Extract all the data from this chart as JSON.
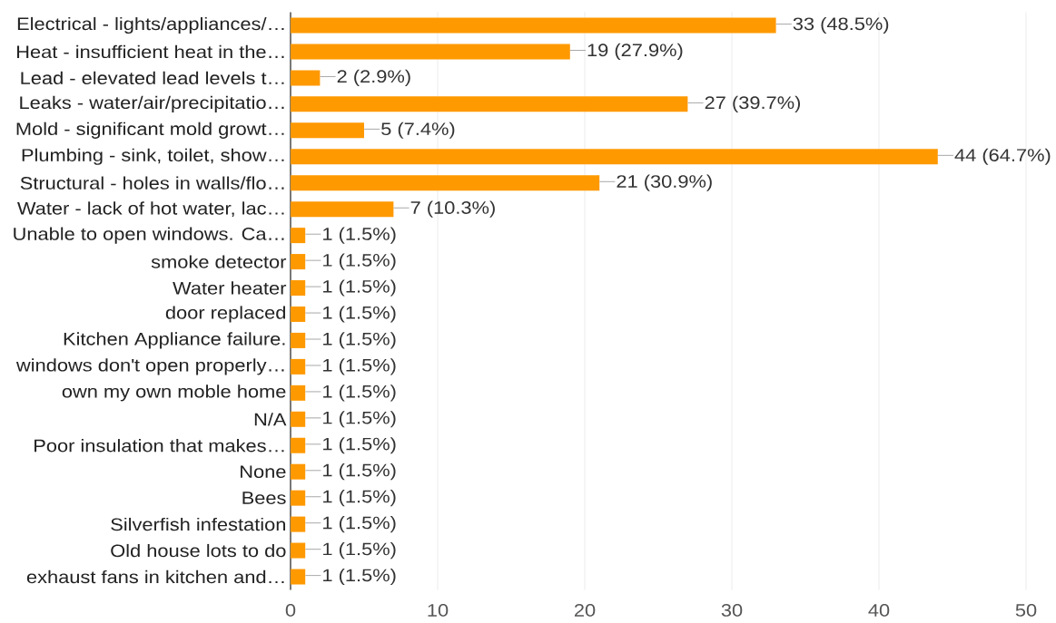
{
  "chart_data": {
    "type": "bar",
    "orientation": "horizontal",
    "categories": [
      "Electrical - lights/appliances/…",
      "Heat - insufficient heat in the…",
      "Lead - elevated lead levels t…",
      "Leaks - water/air/precipitatio…",
      "Mold - significant mold growt…",
      "Plumbing - sink, toilet, show…",
      "Structural - holes in walls/flo…",
      "Water - lack of hot water, lac…",
      "Unable to open windows. Ca…",
      "smoke detector",
      "Water heater",
      "door replaced",
      "Kitchen Appliance failure.",
      "windows don't open properly…",
      "own my own moble home",
      "N/A",
      "Poor insulation that makes…",
      "None",
      "Bees",
      "Silverfish infestation",
      "Old house lots to do",
      "exhaust fans in kitchen and…"
    ],
    "values": [
      33,
      19,
      2,
      27,
      5,
      44,
      21,
      7,
      1,
      1,
      1,
      1,
      1,
      1,
      1,
      1,
      1,
      1,
      1,
      1,
      1,
      1
    ],
    "value_labels": [
      "33 (48.5%)",
      "19 (27.9%)",
      "2 (2.9%)",
      "27 (39.7%)",
      "5 (7.4%)",
      "44 (64.7%)",
      "21 (30.9%)",
      "7 (10.3%)",
      "1 (1.5%)",
      "1 (1.5%)",
      "1 (1.5%)",
      "1 (1.5%)",
      "1 (1.5%)",
      "1 (1.5%)",
      "1 (1.5%)",
      "1 (1.5%)",
      "1 (1.5%)",
      "1 (1.5%)",
      "1 (1.5%)",
      "1 (1.5%)",
      "1 (1.5%)",
      "1 (1.5%)"
    ],
    "color": "#ff9900",
    "xlim": [
      0,
      50
    ],
    "xticks": [
      0,
      10,
      20,
      30,
      40,
      50
    ],
    "grid": "x"
  }
}
